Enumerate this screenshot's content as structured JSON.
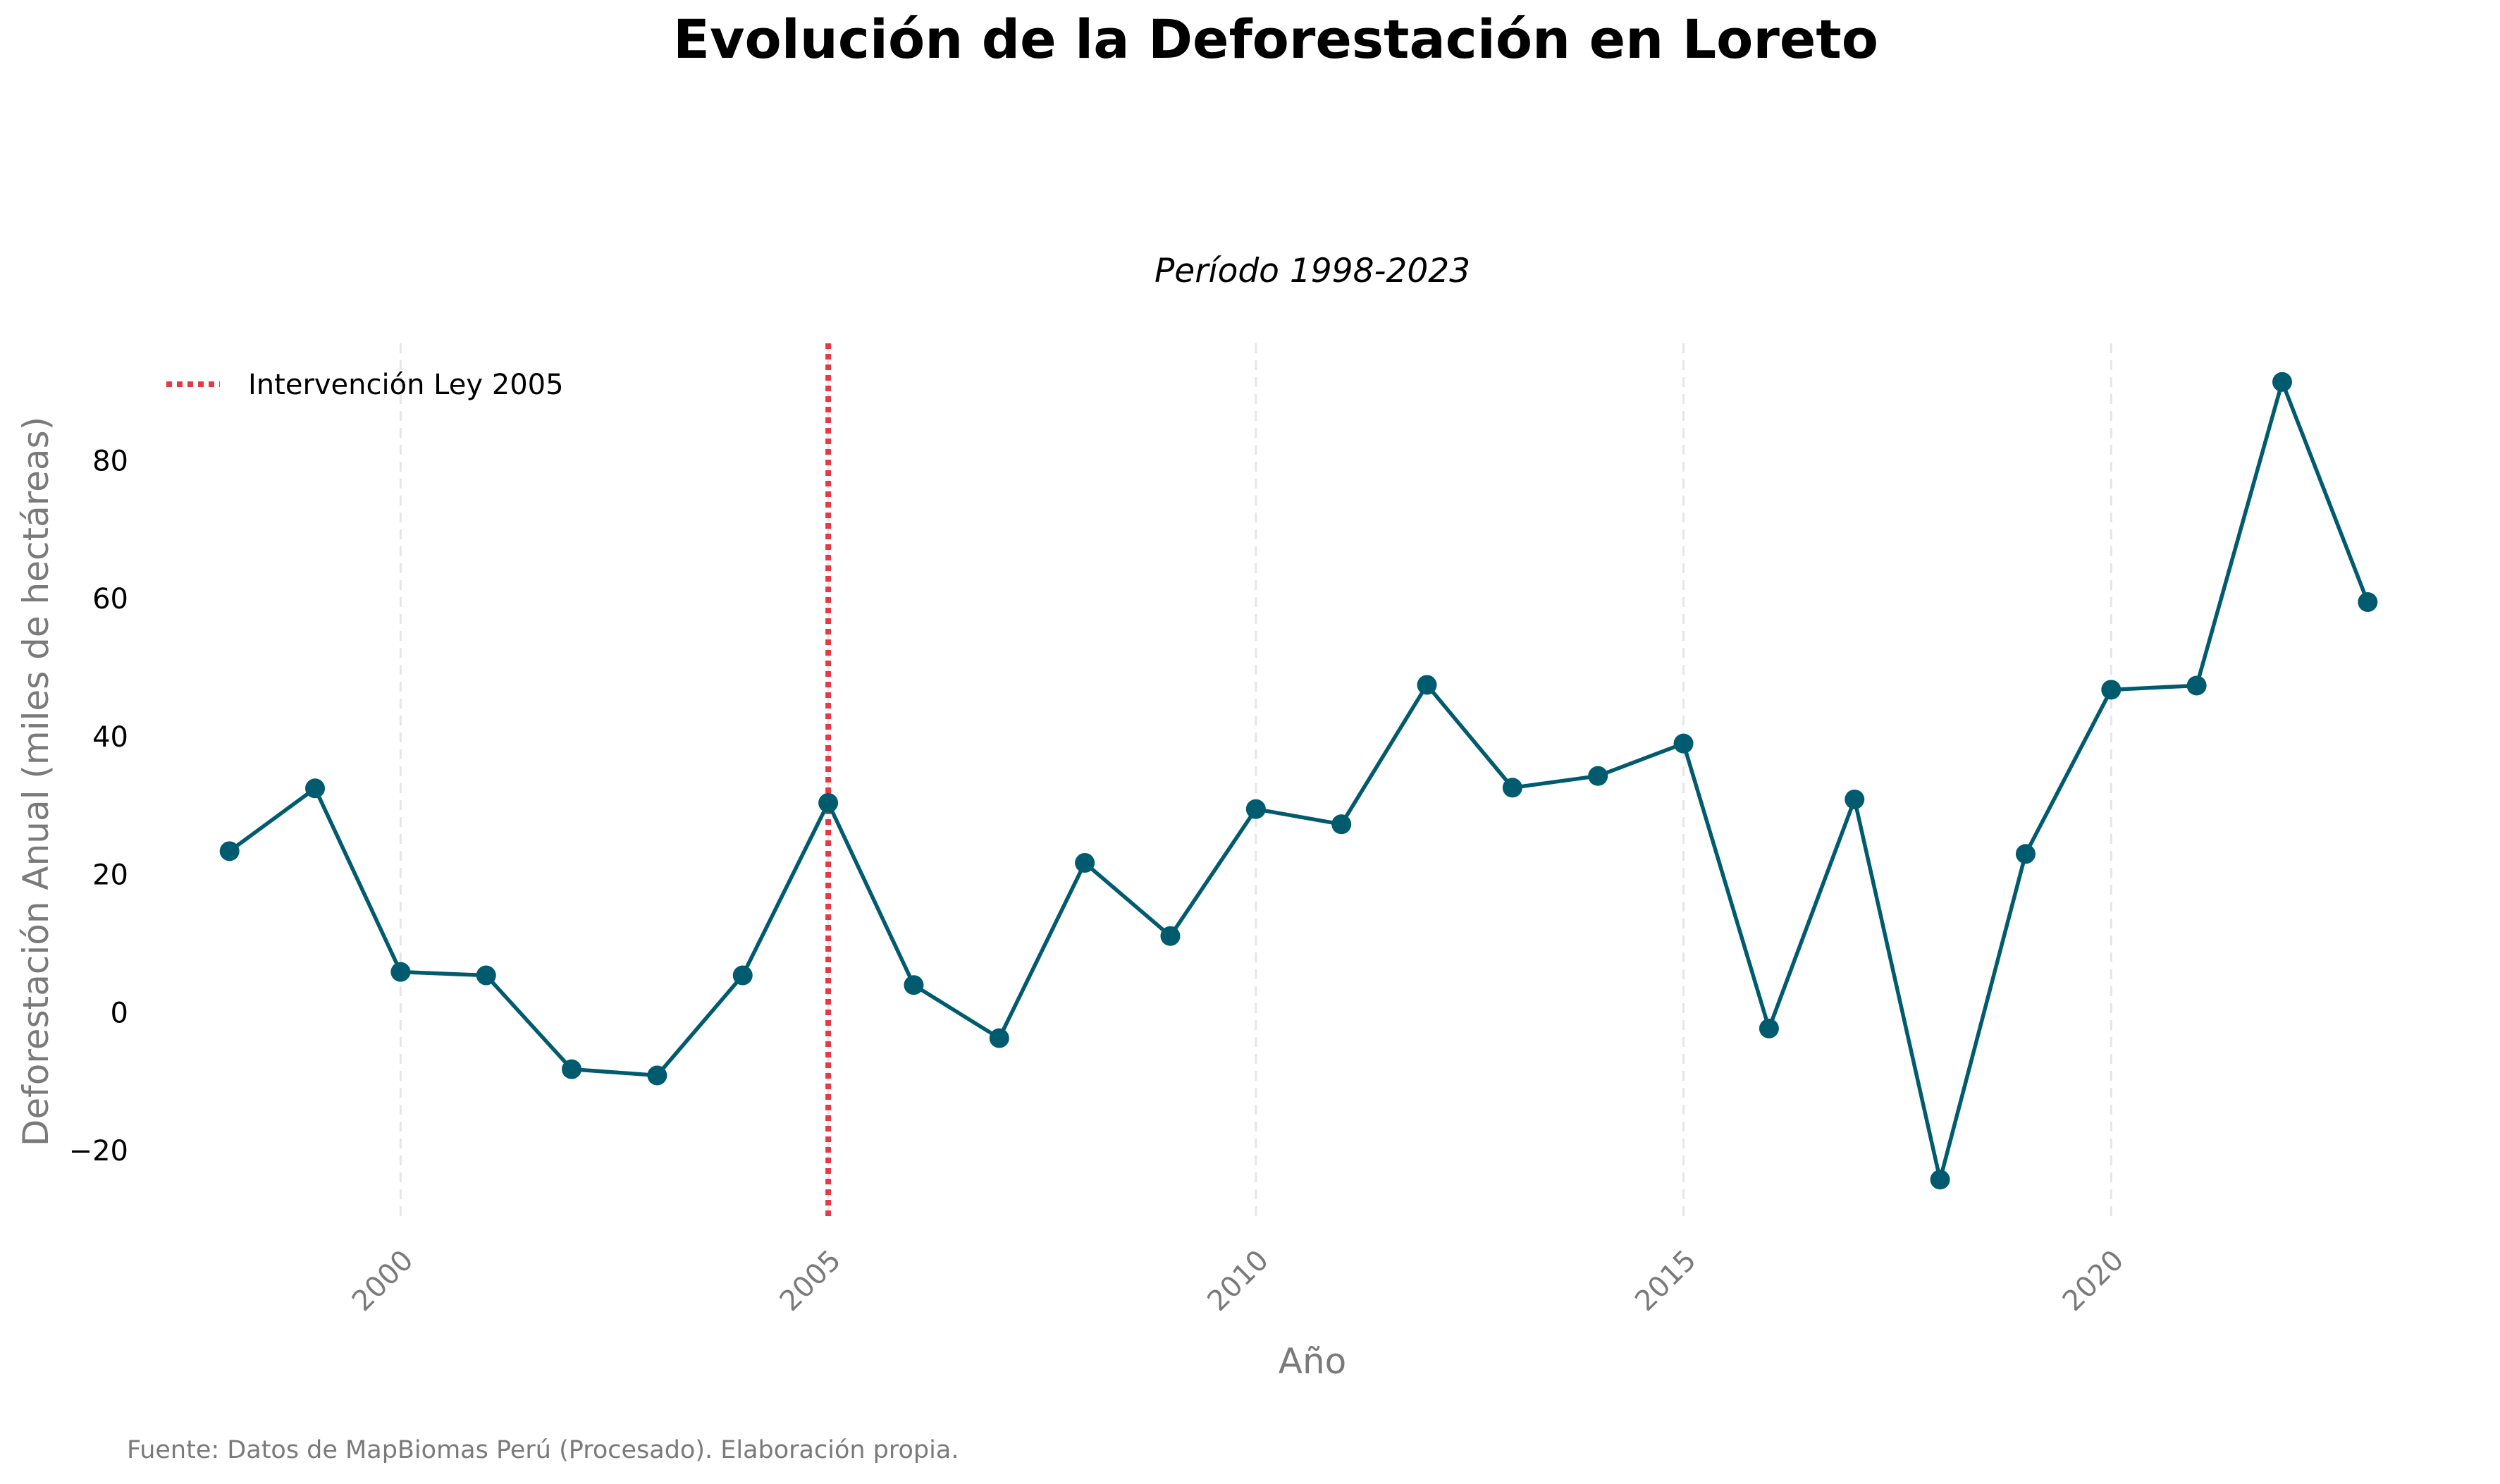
{
  "chart_data": {
    "type": "line",
    "title": "Evolución de la Deforestación en Loreto",
    "subtitle": "Período 1998-2023",
    "xlabel": "Año",
    "ylabel": "Deforestación Anual (miles de hectáreas)",
    "x": [
      1998,
      1999,
      2000,
      2001,
      2002,
      2003,
      2004,
      2005,
      2006,
      2007,
      2008,
      2009,
      2010,
      2011,
      2012,
      2013,
      2014,
      2015,
      2016,
      2017,
      2018,
      2019,
      2020,
      2021,
      2022,
      2023
    ],
    "series": [
      {
        "values": [
          23.4,
          32.5,
          5.9,
          5.4,
          -8.2,
          -9.1,
          5.4,
          30.4,
          4.0,
          -3.7,
          21.7,
          11.1,
          29.5,
          27.3,
          47.5,
          32.6,
          34.3,
          39.0,
          -2.3,
          30.9,
          -24.2,
          23.0,
          46.8,
          47.4,
          91.4,
          59.5
        ],
        "color": "#005b6e"
      }
    ],
    "xlim": [
      1997.5,
      2023.5
    ],
    "ylim": [
      -30,
      97
    ],
    "xticks": [
      2000,
      2005,
      2010,
      2015,
      2020
    ],
    "yticks": [
      -20,
      0,
      20,
      40,
      60,
      80
    ],
    "ytick_labels": [
      "−20",
      "0",
      "20",
      "40",
      "60",
      "80"
    ],
    "xtick_rotation": 45,
    "grid": "vertical dashed at x ticks",
    "vline": {
      "x": 2005,
      "label": "Intervención Ley 2005",
      "color": "#e63946",
      "style": "dotted"
    },
    "legend_position": "top-left",
    "source_note": "Fuente: Datos de MapBiomas Perú (Procesado). Elaboración propia."
  }
}
